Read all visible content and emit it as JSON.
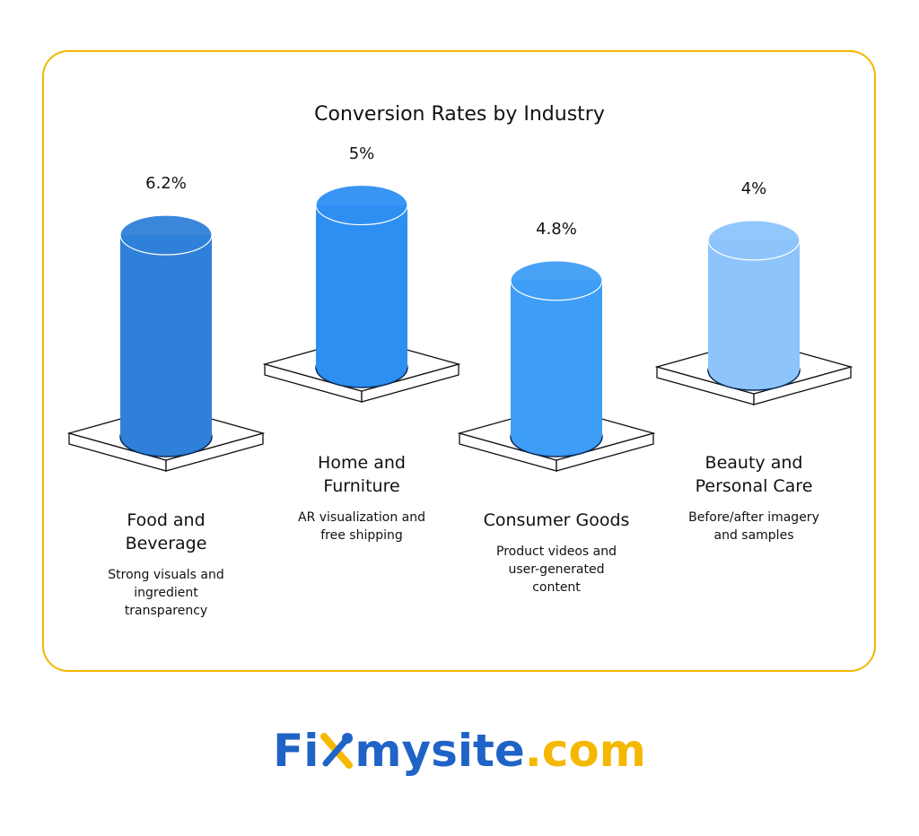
{
  "chart_data": {
    "type": "bar",
    "title": "Conversion Rates by Industry",
    "categories": [
      "Food and Beverage",
      "Home and Furniture",
      "Consumer Goods",
      "Beauty and Personal Care"
    ],
    "values": [
      6.2,
      5,
      4.8,
      4
    ],
    "value_labels": [
      "6.2%",
      "5%",
      "4.8%",
      "4%"
    ],
    "colors": [
      "#2f80d8",
      "#2e8ff2",
      "#3e9df6",
      "#8cc4fb"
    ],
    "descriptions": [
      [
        "Strong visuals and",
        "ingredient",
        "transparency"
      ],
      [
        "AR visualization and",
        "free shipping"
      ],
      [
        "Product videos and",
        "user-generated",
        "content"
      ],
      [
        "Before/after imagery",
        "and samples"
      ]
    ]
  },
  "logo": {
    "parts": [
      "Fi",
      "mysite",
      ".com"
    ]
  }
}
